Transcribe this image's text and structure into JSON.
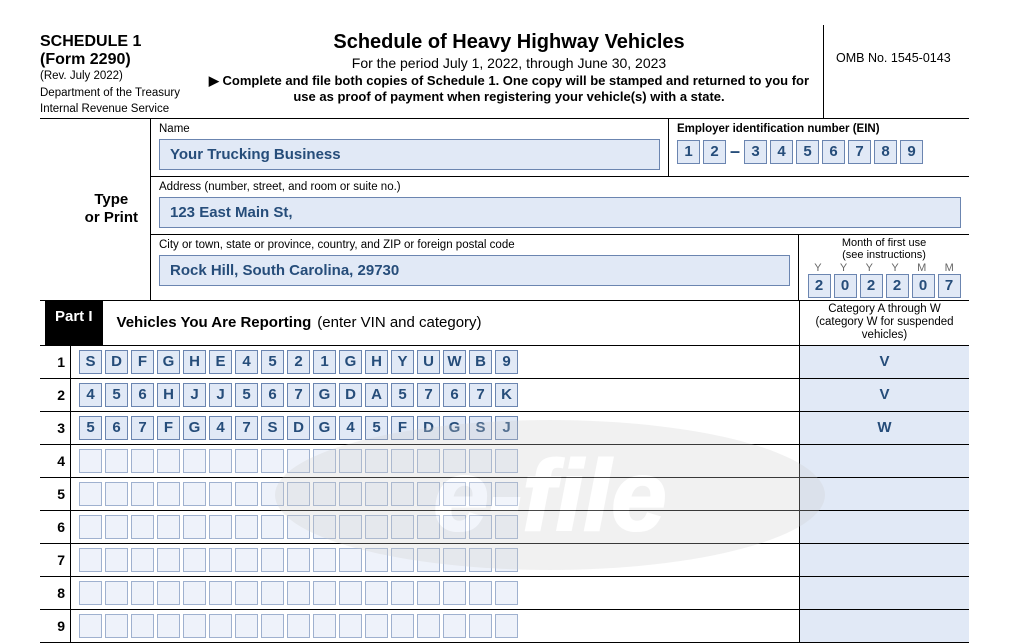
{
  "header": {
    "schedule_line1": "SCHEDULE 1",
    "schedule_line2": "(Form 2290)",
    "revision": "(Rev. July 2022)",
    "dept": "Department of the Treasury",
    "irs": "Internal Revenue Service",
    "title": "Schedule of Heavy Highway Vehicles",
    "period": "For the period July 1, 2022, through June 30, 2023",
    "instruction": "▶ Complete and file both copies of Schedule 1. One copy will be stamped and returned to you for use as proof of payment when registering your vehicle(s) with a state.",
    "omb": "OMB No. 1545-0143"
  },
  "type_or_print": {
    "label_line1": "Type",
    "label_line2": "or Print",
    "name_label": "Name",
    "name_value": "Your Trucking Business",
    "ein_label": "Employer identification number (EIN)",
    "ein_digits": [
      "1",
      "2",
      "3",
      "4",
      "5",
      "6",
      "7",
      "8",
      "9"
    ],
    "ein_dash_after": 2,
    "address_label": "Address (number, street, and room or suite no.)",
    "address_value": "123 East Main St,",
    "city_label": "City or town, state or province, country, and ZIP or foreign postal code",
    "city_value": "Rock Hill, South Carolina, 29730",
    "month_label1": "Month of first use",
    "month_label2": "(see instructions)",
    "ym_letters": [
      "Y",
      "Y",
      "Y",
      "Y",
      "M",
      "M"
    ],
    "month_digits": [
      "2",
      "0",
      "2",
      "2",
      "0",
      "7"
    ]
  },
  "part1": {
    "badge": "Part I",
    "title_bold": "Vehicles You Are Reporting",
    "title_paren": "(enter VIN and category)",
    "cat_header": "Category A through W (category W for suspended vehicles)",
    "vin_box_count": 17,
    "rows": [
      {
        "n": "1",
        "vin": [
          "S",
          "D",
          "F",
          "G",
          "H",
          "E",
          "4",
          "5",
          "2",
          "1",
          "G",
          "H",
          "Y",
          "U",
          "W",
          "B",
          "9"
        ],
        "cat": "V"
      },
      {
        "n": "2",
        "vin": [
          "4",
          "5",
          "6",
          "H",
          "J",
          "J",
          "5",
          "6",
          "7",
          "G",
          "D",
          "A",
          "5",
          "7",
          "6",
          "7",
          "K"
        ],
        "cat": "V"
      },
      {
        "n": "3",
        "vin": [
          "5",
          "6",
          "7",
          "F",
          "G",
          "4",
          "7",
          "S",
          "D",
          "G",
          "4",
          "5",
          "F",
          "D",
          "G",
          "S",
          "J"
        ],
        "cat": "W"
      },
      {
        "n": "4",
        "vin": [],
        "cat": ""
      },
      {
        "n": "5",
        "vin": [],
        "cat": ""
      },
      {
        "n": "6",
        "vin": [],
        "cat": ""
      },
      {
        "n": "7",
        "vin": [],
        "cat": ""
      },
      {
        "n": "8",
        "vin": [],
        "cat": ""
      },
      {
        "n": "9",
        "vin": [],
        "cat": ""
      }
    ]
  },
  "colors": {
    "input_bg": "#e1e9f6",
    "input_border": "#6b85b0",
    "input_text": "#264d7a"
  }
}
